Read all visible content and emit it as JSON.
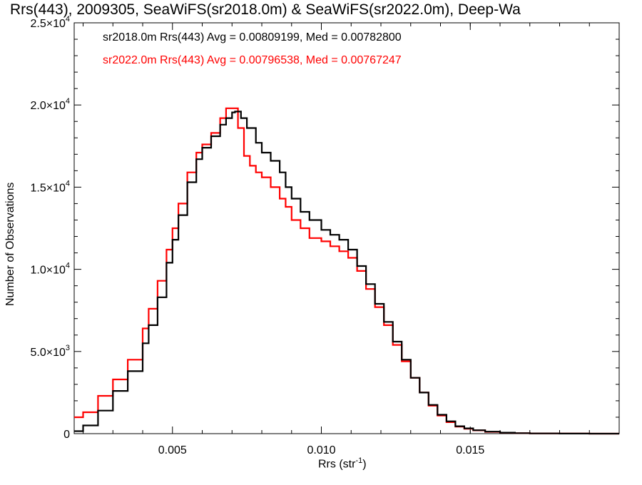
{
  "chart_data": {
    "type": "line",
    "title": "Rrs(443), 2009305, SeaWiFS(sr2018.0m) & SeaWiFS(sr2022.0m), Deep-Wa",
    "xlabel": "Rrs (str",
    "xlabel_sup": "-1",
    "xlabel_close": ")",
    "ylabel": "Number of Observations",
    "xlim": [
      0.0017,
      0.02
    ],
    "ylim": [
      0,
      25000
    ],
    "xticks": [
      {
        "value": 0.005,
        "label": "0.005"
      },
      {
        "value": 0.01,
        "label": "0.010"
      },
      {
        "value": 0.015,
        "label": "0.015"
      }
    ],
    "yticks": [
      {
        "value": 0,
        "mant": "0",
        "exp": ""
      },
      {
        "value": 5000,
        "mant": "5.0×10",
        "exp": "3"
      },
      {
        "value": 10000,
        "mant": "1.0×10",
        "exp": "4"
      },
      {
        "value": 15000,
        "mant": "1.5×10",
        "exp": "4"
      },
      {
        "value": 20000,
        "mant": "2.0×10",
        "exp": "4"
      },
      {
        "value": 25000,
        "mant": "2.5×10",
        "exp": "4"
      }
    ],
    "legend_placement": "top-left",
    "grid": false,
    "series": [
      {
        "name": "sr2018.0m Rrs(443) Avg = 0.00809199, Med = 0.00782800",
        "color": "#000000",
        "x": [
          0.0017,
          0.002,
          0.0025,
          0.003,
          0.0035,
          0.004,
          0.0042,
          0.0045,
          0.0048,
          0.005,
          0.0052,
          0.0055,
          0.0058,
          0.006,
          0.0063,
          0.0066,
          0.0068,
          0.007,
          0.0071,
          0.0073,
          0.0075,
          0.0078,
          0.008,
          0.0083,
          0.0086,
          0.0088,
          0.009,
          0.0093,
          0.0096,
          0.01,
          0.0103,
          0.0106,
          0.0109,
          0.0112,
          0.0115,
          0.0118,
          0.0121,
          0.0124,
          0.0127,
          0.013,
          0.0133,
          0.0136,
          0.0139,
          0.0142,
          0.0145,
          0.0148,
          0.0151,
          0.0155,
          0.016,
          0.0165,
          0.017,
          0.018,
          0.019,
          0.02
        ],
        "y": [
          150,
          500,
          1400,
          2600,
          3800,
          5500,
          6600,
          8300,
          10400,
          11800,
          13300,
          15300,
          16700,
          17400,
          18100,
          18800,
          19200,
          19550,
          19600,
          19200,
          18600,
          17700,
          17100,
          16600,
          15900,
          15000,
          14300,
          13500,
          13000,
          12400,
          12100,
          11800,
          11200,
          10200,
          9100,
          7900,
          6800,
          5600,
          4500,
          3400,
          2500,
          1750,
          1150,
          750,
          450,
          320,
          210,
          120,
          60,
          30,
          15,
          6,
          2,
          0
        ]
      },
      {
        "name": "sr2022.0m Rrs(443) Avg = 0.00796538, Med = 0.00767247",
        "color": "#ff0000",
        "x": [
          0.0017,
          0.002,
          0.0025,
          0.003,
          0.0035,
          0.004,
          0.0042,
          0.0045,
          0.0048,
          0.005,
          0.0052,
          0.0055,
          0.0058,
          0.006,
          0.0063,
          0.0066,
          0.0068,
          0.007,
          0.0072,
          0.0074,
          0.0076,
          0.0078,
          0.008,
          0.0083,
          0.0086,
          0.0088,
          0.009,
          0.0093,
          0.0096,
          0.01,
          0.0103,
          0.0106,
          0.0109,
          0.0112,
          0.0115,
          0.0118,
          0.0121,
          0.0124,
          0.0127,
          0.013,
          0.0133,
          0.0136,
          0.0139,
          0.0142,
          0.0145,
          0.0148,
          0.0151,
          0.0155,
          0.016,
          0.0165,
          0.017,
          0.018,
          0.019,
          0.02
        ],
        "y": [
          1000,
          1300,
          2300,
          3300,
          4500,
          6400,
          7600,
          9300,
          11200,
          12500,
          14000,
          15900,
          17100,
          17600,
          18300,
          19200,
          19800,
          19800,
          18600,
          16900,
          16300,
          15900,
          15600,
          15000,
          14300,
          13800,
          13000,
          12500,
          11900,
          11700,
          11400,
          11100,
          10700,
          9900,
          8800,
          7700,
          6600,
          5400,
          4400,
          3400,
          2500,
          1700,
          1100,
          700,
          430,
          300,
          200,
          110,
          55,
          28,
          14,
          5,
          2,
          0
        ]
      }
    ]
  }
}
